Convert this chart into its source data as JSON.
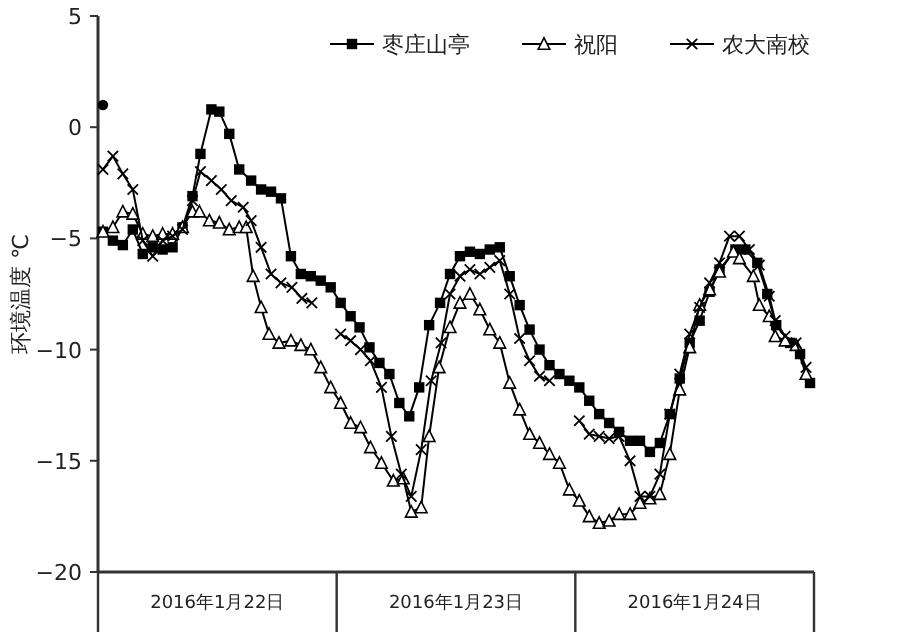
{
  "chart_data": {
    "type": "line",
    "ylabel": "环境温度  ℃",
    "xlim": [
      "2016-01-22T00:00",
      "2016-01-25T00:00"
    ],
    "xticks": [
      {
        "value": "2016-01-22T00:00",
        "label": null
      },
      {
        "value": "2016-01-22T12:00",
        "label": "2016年1月22日"
      },
      {
        "value": "2016-01-23T00:00",
        "label": null
      },
      {
        "value": "2016-01-23T12:00",
        "label": "2016年1月23日"
      },
      {
        "value": "2016-01-24T00:00",
        "label": null
      },
      {
        "value": "2016-01-24T12:00",
        "label": "2016年1月24日"
      },
      {
        "value": "2016-01-25T00:00",
        "label": null
      }
    ],
    "ylim": [
      -20,
      5
    ],
    "yticks": [
      -20,
      -15,
      -10,
      -5,
      0,
      5
    ],
    "grid": false,
    "legend": "top right",
    "line_style": "solid",
    "series": [
      {
        "name": "枣庄山亭",
        "color": "#000000",
        "marker": "square",
        "x": [
          "2016-01-22T00:30",
          "2016-01-22T01:30",
          "2016-01-22T02:30",
          "2016-01-22T03:30",
          "2016-01-22T04:30",
          "2016-01-22T05:30",
          "2016-01-22T06:30",
          "2016-01-22T07:30",
          "2016-01-22T08:30",
          "2016-01-22T09:30",
          "2016-01-22T10:18",
          "2016-01-22T11:24",
          "2016-01-22T12:12",
          "2016-01-22T13:12",
          "2016-01-22T14:12",
          "2016-01-22T15:24",
          "2016-01-22T16:24",
          "2016-01-22T17:24",
          "2016-01-22T18:24",
          "2016-01-22T19:24",
          "2016-01-22T20:24",
          "2016-01-22T21:24",
          "2016-01-22T22:24",
          "2016-01-22T23:24",
          "2016-01-23T00:24",
          "2016-01-23T01:24",
          "2016-01-23T02:18",
          "2016-01-23T03:18",
          "2016-01-23T04:18",
          "2016-01-23T05:18",
          "2016-01-23T06:18",
          "2016-01-23T07:18",
          "2016-01-23T08:18",
          "2016-01-23T09:18",
          "2016-01-23T10:24",
          "2016-01-23T11:24",
          "2016-01-23T12:24",
          "2016-01-23T13:24",
          "2016-01-23T14:24",
          "2016-01-23T15:24",
          "2016-01-23T16:24",
          "2016-01-23T17:24",
          "2016-01-23T18:24",
          "2016-01-23T19:24",
          "2016-01-23T20:24",
          "2016-01-23T21:24",
          "2016-01-23T22:24",
          "2016-01-23T23:24",
          "2016-01-24T00:24",
          "2016-01-24T01:24",
          "2016-01-24T02:24",
          "2016-01-24T03:24",
          "2016-01-24T04:24",
          "2016-01-24T05:30",
          "2016-01-24T06:30",
          "2016-01-24T07:30",
          "2016-01-24T08:30",
          "2016-01-24T09:30",
          "2016-01-24T10:30",
          "2016-01-24T11:30",
          "2016-01-24T12:30",
          "2016-01-24T13:30",
          "2016-01-24T14:30",
          "2016-01-24T16:06",
          "2016-01-24T17:06",
          "2016-01-24T18:18",
          "2016-01-24T19:18",
          "2016-01-24T20:12",
          "2016-01-24T21:36",
          "2016-01-24T22:36",
          "2016-01-24T23:36"
        ],
        "values": [
          -4.7,
          -5.1,
          -5.3,
          -4.6,
          -5.7,
          -5.4,
          -5.5,
          -5.4,
          -4.5,
          -3.1,
          -1.2,
          0.8,
          0.7,
          -0.3,
          -1.9,
          -2.4,
          -2.8,
          -2.9,
          -3.2,
          -5.8,
          -6.6,
          -6.7,
          -6.9,
          -7.2,
          -7.9,
          -8.5,
          -9.0,
          -9.9,
          -10.6,
          -11.1,
          -12.4,
          -13.0,
          -11.7,
          -8.9,
          -7.9,
          -6.6,
          -5.8,
          -5.6,
          -5.7,
          -5.5,
          -5.4,
          -6.7,
          -8.0,
          -9.1,
          -10.0,
          -10.7,
          -11.1,
          -11.4,
          -11.7,
          -12.3,
          -12.9,
          -13.3,
          -13.7,
          -14.1,
          -14.1,
          -14.6,
          -14.2,
          -12.9,
          -11.3,
          -9.7,
          -8.7,
          -7.4,
          -6.4,
          -5.5,
          -5.5,
          -6.1,
          -7.5,
          -8.9,
          -9.7,
          -10.2,
          -11.5
        ]
      },
      {
        "name": "祝阳",
        "color": "#000000",
        "marker": "triangle",
        "x": [
          "2016-01-22T00:30",
          "2016-01-22T01:30",
          "2016-01-22T02:30",
          "2016-01-22T03:30",
          "2016-01-22T04:30",
          "2016-01-22T05:30",
          "2016-01-22T06:30",
          "2016-01-22T07:30",
          "2016-01-22T08:30",
          "2016-01-22T09:30",
          "2016-01-22T10:12",
          "2016-01-22T11:12",
          "2016-01-22T12:12",
          "2016-01-22T13:12",
          "2016-01-22T14:12",
          "2016-01-22T14:54",
          "2016-01-22T15:36",
          "2016-01-22T16:24",
          "2016-01-22T17:12",
          "2016-01-22T18:12",
          "2016-01-22T19:24",
          "2016-01-22T20:24",
          "2016-01-22T21:24",
          "2016-01-22T22:24",
          "2016-01-22T23:24",
          "2016-01-23T00:24",
          "2016-01-23T01:24",
          "2016-01-23T02:24",
          "2016-01-23T03:24",
          "2016-01-23T04:30",
          "2016-01-23T05:42",
          "2016-01-23T06:42",
          "2016-01-23T07:30",
          "2016-01-23T08:30",
          "2016-01-23T09:18",
          "2016-01-23T10:18",
          "2016-01-23T11:24",
          "2016-01-23T12:24",
          "2016-01-23T13:24",
          "2016-01-23T14:24",
          "2016-01-23T15:24",
          "2016-01-23T16:24",
          "2016-01-23T17:24",
          "2016-01-23T18:24",
          "2016-01-23T19:24",
          "2016-01-23T20:24",
          "2016-01-23T21:24",
          "2016-01-23T22:24",
          "2016-01-23T23:24",
          "2016-01-24T00:24",
          "2016-01-24T01:24",
          "2016-01-24T02:24",
          "2016-01-24T03:24",
          "2016-01-24T04:24",
          "2016-01-24T05:30",
          "2016-01-24T06:30",
          "2016-01-24T07:30",
          "2016-01-24T08:30",
          "2016-01-24T09:30",
          "2016-01-24T10:30",
          "2016-01-24T11:30",
          "2016-01-24T12:30",
          "2016-01-24T13:30",
          "2016-01-24T14:30",
          "2016-01-24T15:54",
          "2016-01-24T16:30",
          "2016-01-24T17:54",
          "2016-01-24T18:30",
          "2016-01-24T19:30",
          "2016-01-24T20:06",
          "2016-01-24T21:06",
          "2016-01-24T22:12",
          "2016-01-24T23:12"
        ],
        "values": [
          -4.7,
          -4.5,
          -3.8,
          -3.9,
          -4.8,
          -4.9,
          -4.8,
          -4.8,
          -4.5,
          -3.8,
          -3.8,
          -4.2,
          -4.3,
          -4.6,
          -4.5,
          -4.5,
          -6.7,
          -8.1,
          -9.3,
          -9.7,
          -9.6,
          -9.8,
          -10.0,
          -10.8,
          -11.7,
          -12.4,
          -13.3,
          -13.5,
          -14.4,
          -15.1,
          -15.9,
          -15.8,
          -17.3,
          -17.1,
          -13.9,
          -10.8,
          -9.0,
          -7.9,
          -7.5,
          -8.2,
          -9.1,
          -9.7,
          -11.5,
          -12.7,
          -13.8,
          -14.2,
          -14.7,
          -15.1,
          -16.3,
          -16.8,
          -17.5,
          -17.8,
          -17.7,
          -17.4,
          -17.4,
          -16.9,
          -16.7,
          -16.5,
          -14.7,
          -11.8,
          -9.9,
          -8.0,
          -7.3,
          -6.5,
          -5.6,
          -5.9,
          -6.7,
          -8.0,
          -8.5,
          -9.4,
          -9.6,
          -9.8,
          -11.1
        ]
      },
      {
        "name": "农大南校",
        "color": "#000000",
        "marker": "cross",
        "x": [
          "2016-01-22T00:30",
          "2016-01-22T01:30",
          "2016-01-22T02:30",
          "2016-01-22T03:30",
          "2016-01-22T04:30",
          "2016-01-22T05:30",
          "2016-01-22T06:30",
          "2016-01-22T07:30",
          "2016-01-22T08:30",
          "2016-01-22T09:30",
          "2016-01-22T10:18",
          "2016-01-22T11:24",
          "2016-01-22T12:24",
          "2016-01-22T13:24",
          "2016-01-22T14:36",
          "2016-01-22T15:24",
          "2016-01-22T16:24",
          "2016-01-22T17:24",
          "2016-01-22T18:24",
          "2016-01-22T19:30",
          "2016-01-22T20:30",
          "2016-01-22T21:30",
          "2016-01-23T00:24",
          "2016-01-23T01:24",
          "2016-01-23T02:24",
          "2016-01-23T03:24",
          "2016-01-23T04:30",
          "2016-01-23T05:30",
          "2016-01-23T06:30",
          "2016-01-23T07:30",
          "2016-01-23T08:30",
          "2016-01-23T09:30",
          "2016-01-23T10:30",
          "2016-01-23T11:24",
          "2016-01-23T12:24",
          "2016-01-23T13:24",
          "2016-01-23T14:24",
          "2016-01-23T15:24",
          "2016-01-23T16:24",
          "2016-01-23T17:24",
          "2016-01-23T18:24",
          "2016-01-23T19:24",
          "2016-01-23T20:24",
          "2016-01-23T21:24",
          "2016-01-24T00:24",
          "2016-01-24T01:24",
          "2016-01-24T02:24",
          "2016-01-24T03:24",
          "2016-01-24T04:24",
          "2016-01-24T05:30",
          "2016-01-24T06:30",
          "2016-01-24T07:30",
          "2016-01-24T08:30",
          "2016-01-24T09:30",
          "2016-01-24T10:30",
          "2016-01-24T11:30",
          "2016-01-24T12:30",
          "2016-01-24T13:30",
          "2016-01-24T14:30",
          "2016-01-24T15:30",
          "2016-01-24T16:30",
          "2016-01-24T17:30",
          "2016-01-24T18:30",
          "2016-01-24T19:30",
          "2016-01-24T20:06",
          "2016-01-24T21:06",
          "2016-01-24T22:12",
          "2016-01-24T23:12"
        ],
        "values": [
          -1.9,
          -1.3,
          -2.1,
          -2.8,
          -5.1,
          -5.8,
          -5.1,
          -4.9,
          -4.6,
          -3.3,
          -2.0,
          -2.4,
          -2.8,
          -3.3,
          -3.6,
          -4.2,
          -5.4,
          -6.6,
          -7.0,
          -7.2,
          -7.7,
          -7.9,
          -9.3,
          -9.6,
          -10.0,
          -10.5,
          -11.7,
          -13.9,
          -15.6,
          -16.6,
          -14.5,
          -11.4,
          -9.7,
          -7.5,
          -6.7,
          -6.4,
          -6.6,
          -6.3,
          -6.0,
          -7.5,
          -9.5,
          -10.5,
          -11.2,
          -11.4,
          -13.2,
          -13.8,
          -13.9,
          -14.0,
          -13.9,
          -15.0,
          -16.6,
          -16.6,
          -15.6,
          -12.9,
          -11.1,
          -9.3,
          -8.1,
          -7.0,
          -6.1,
          -4.9,
          -4.9,
          -5.5,
          -6.2,
          -7.6,
          -8.7,
          -9.4,
          -9.7,
          -10.8
        ]
      },
      {
        "type": "scatter",
        "color": "#000000",
        "marker": "circle",
        "x": [
          "2016-01-22T00:30"
        ],
        "values": [
          1.0
        ]
      }
    ]
  }
}
